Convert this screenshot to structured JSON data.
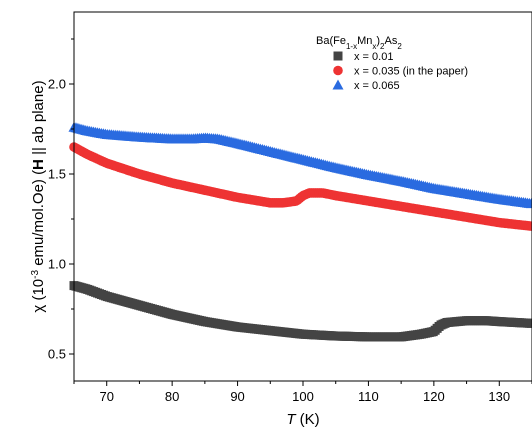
{
  "chart_data": {
    "type": "scatter",
    "title": "",
    "xlabel": {
      "italic": "T",
      "rest": " (K)"
    },
    "ylabel": {
      "pre": "χ (10",
      "sup": "-3",
      "mid": " emu/mol.Oe) (",
      "bold": "H",
      "post": " || ab plane)"
    },
    "xlim": [
      65,
      135
    ],
    "ylim": [
      0.35,
      2.4
    ],
    "xticks": [
      70,
      80,
      90,
      100,
      110,
      120,
      130
    ],
    "yticks": [
      0.5,
      1.0,
      1.5,
      2.0
    ],
    "ytick_labels": [
      "0.5",
      "1.0",
      "1.5",
      "2.0"
    ],
    "legend": {
      "position": "top-right",
      "title": {
        "a": "Ba(Fe",
        "sub1": "1-x",
        "b": "Mn",
        "sub2": "x",
        "c": ")",
        "sub3": "2",
        "d": "As",
        "sub4": "2"
      }
    },
    "series": [
      {
        "name": "x = 0.01",
        "color": "#444444",
        "marker": "square",
        "points": [
          [
            65,
            0.88
          ],
          [
            67,
            0.86
          ],
          [
            70,
            0.82
          ],
          [
            75,
            0.77
          ],
          [
            80,
            0.72
          ],
          [
            85,
            0.68
          ],
          [
            90,
            0.65
          ],
          [
            95,
            0.63
          ],
          [
            100,
            0.61
          ],
          [
            105,
            0.6
          ],
          [
            110,
            0.595
          ],
          [
            115,
            0.595
          ],
          [
            118,
            0.61
          ],
          [
            120,
            0.625
          ],
          [
            121,
            0.66
          ],
          [
            122,
            0.675
          ],
          [
            125,
            0.685
          ],
          [
            128,
            0.685
          ],
          [
            130,
            0.68
          ],
          [
            135,
            0.67
          ]
        ]
      },
      {
        "name": "x = 0.035 (in the paper)",
        "color": "#ee3333",
        "marker": "circle",
        "points": [
          [
            65,
            1.65
          ],
          [
            67,
            1.61
          ],
          [
            70,
            1.56
          ],
          [
            75,
            1.5
          ],
          [
            80,
            1.45
          ],
          [
            85,
            1.41
          ],
          [
            90,
            1.37
          ],
          [
            95,
            1.34
          ],
          [
            97,
            1.34
          ],
          [
            99,
            1.35
          ],
          [
            100,
            1.38
          ],
          [
            101,
            1.395
          ],
          [
            103,
            1.395
          ],
          [
            105,
            1.38
          ],
          [
            110,
            1.35
          ],
          [
            115,
            1.32
          ],
          [
            120,
            1.29
          ],
          [
            125,
            1.26
          ],
          [
            130,
            1.23
          ],
          [
            135,
            1.21
          ]
        ]
      },
      {
        "name": "x = 0.065",
        "color": "#2a6be0",
        "marker": "triangle",
        "points": [
          [
            65,
            1.76
          ],
          [
            67,
            1.74
          ],
          [
            70,
            1.72
          ],
          [
            75,
            1.705
          ],
          [
            80,
            1.695
          ],
          [
            83,
            1.695
          ],
          [
            85,
            1.7
          ],
          [
            87,
            1.695
          ],
          [
            90,
            1.67
          ],
          [
            95,
            1.625
          ],
          [
            100,
            1.58
          ],
          [
            105,
            1.535
          ],
          [
            110,
            1.495
          ],
          [
            115,
            1.46
          ],
          [
            120,
            1.42
          ],
          [
            125,
            1.39
          ],
          [
            130,
            1.36
          ],
          [
            135,
            1.335
          ]
        ]
      }
    ]
  }
}
